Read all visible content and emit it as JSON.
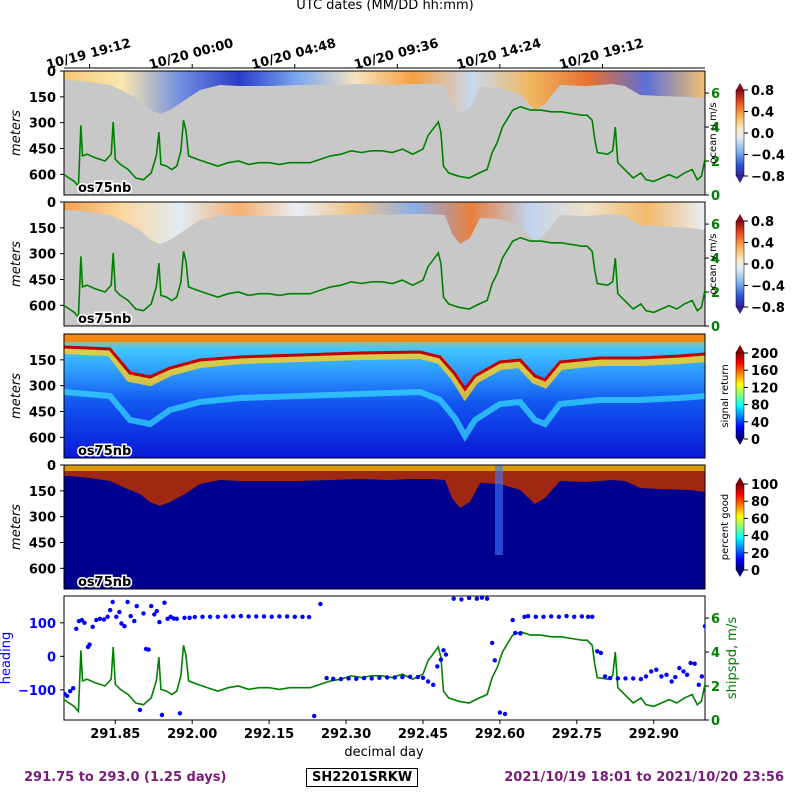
{
  "figure": {
    "top_axis_label": "UTC dates (MM/DD hh:mm)",
    "instrument_label": "os75nb",
    "footer_left": "291.75 to 293.0 (1.25 days)",
    "footer_center": "SH2201SRKW",
    "footer_right": "2021/10/19 18:01 to 2021/10/20 23:56",
    "colors": {
      "footer_text": "#7a1a7a",
      "heading_axis": "#0000ff",
      "shipspd_axis": "#008000",
      "bad_data_gray": "#c8c8c8"
    }
  },
  "chart_data": [
    {
      "type": "heatmap",
      "id": "ocean_u",
      "ylabel": "meters",
      "yticks": [
        0,
        150,
        300,
        450,
        600
      ],
      "ylim": [
        720,
        0
      ],
      "colorbar_label": "ocean u m/s",
      "colorbar_ticks": [
        "0.8",
        "0.4",
        "0.0",
        "−0.4",
        "−0.8"
      ],
      "colormap": "RdYlBu_r",
      "right_axis_ticks": [
        "6",
        "4",
        "2",
        "0"
      ],
      "right_axis_color": "#008000"
    },
    {
      "type": "heatmap",
      "id": "ocean_v",
      "ylabel": "meters",
      "yticks": [
        0,
        150,
        300,
        450,
        600
      ],
      "ylim": [
        720,
        0
      ],
      "colorbar_label": "ocean v m/s",
      "colorbar_ticks": [
        "0.8",
        "0.4",
        "0.0",
        "−0.4",
        "−0.8"
      ],
      "colormap": "RdYlBu_r",
      "right_axis_ticks": [
        "6",
        "4",
        "2",
        "0"
      ],
      "right_axis_color": "#008000"
    },
    {
      "type": "heatmap",
      "id": "signal_return",
      "ylabel": "meters",
      "yticks": [
        150,
        300,
        450,
        600
      ],
      "ylim": [
        720,
        0
      ],
      "colorbar_label": "signal return",
      "colorbar_ticks": [
        "200",
        "160",
        "120",
        "80",
        "40",
        "0"
      ],
      "colormap": "jet"
    },
    {
      "type": "heatmap",
      "id": "percent_good",
      "ylabel": "meters",
      "yticks": [
        0,
        150,
        300,
        450,
        600
      ],
      "ylim": [
        720,
        0
      ],
      "colorbar_label": "percent good",
      "colorbar_ticks": [
        "100",
        "80",
        "60",
        "40",
        "20",
        "0"
      ],
      "colormap": "jet"
    },
    {
      "type": "scatter",
      "id": "heading_speed",
      "xlabel": "decimal day",
      "xlim": [
        291.75,
        293.0
      ],
      "xticks": [
        "291.85",
        "292.00",
        "292.15",
        "292.30",
        "292.45",
        "292.60",
        "292.75",
        "292.90"
      ],
      "top_xticks": [
        "10/19 19:12",
        "10/20 00:00",
        "10/20 04:48",
        "10/20 09:36",
        "10/20 14:24",
        "10/20 19:12"
      ],
      "ylabel": "heading",
      "yticks": [
        "100",
        "0",
        "−100"
      ],
      "ylim": [
        -190,
        180
      ],
      "y2label": "shipspd, m/s",
      "y2ticks": [
        "6",
        "4",
        "2",
        "0"
      ],
      "y2lim": [
        0,
        7.3
      ],
      "heading": [
        [
          291.751,
          -112
        ],
        [
          291.756,
          -118
        ],
        [
          291.762,
          -104
        ],
        [
          291.768,
          -95
        ],
        [
          291.774,
          82
        ],
        [
          291.779,
          105
        ],
        [
          291.785,
          108
        ],
        [
          291.79,
          100
        ],
        [
          291.797,
          28
        ],
        [
          291.8,
          35
        ],
        [
          291.806,
          88
        ],
        [
          291.813,
          108
        ],
        [
          291.82,
          112
        ],
        [
          291.828,
          110
        ],
        [
          291.835,
          118
        ],
        [
          291.84,
          138
        ],
        [
          291.845,
          162
        ],
        [
          291.852,
          118
        ],
        [
          291.858,
          132
        ],
        [
          291.862,
          98
        ],
        [
          291.868,
          90
        ],
        [
          291.874,
          162
        ],
        [
          291.88,
          120
        ],
        [
          291.887,
          105
        ],
        [
          291.892,
          150
        ],
        [
          291.898,
          -160
        ],
        [
          291.905,
          128
        ],
        [
          291.91,
          22
        ],
        [
          291.915,
          20
        ],
        [
          291.92,
          150
        ],
        [
          291.926,
          125
        ],
        [
          291.931,
          135
        ],
        [
          291.936,
          102
        ],
        [
          291.941,
          -175
        ],
        [
          291.946,
          160
        ],
        [
          291.952,
          112
        ],
        [
          291.958,
          118
        ],
        [
          291.964,
          113
        ],
        [
          291.97,
          112
        ],
        [
          291.976,
          -170
        ],
        [
          291.985,
          115
        ],
        [
          291.995,
          115
        ],
        [
          292.005,
          117
        ],
        [
          292.02,
          118
        ],
        [
          292.035,
          118
        ],
        [
          292.05,
          118
        ],
        [
          292.065,
          119
        ],
        [
          292.08,
          119
        ],
        [
          292.095,
          120
        ],
        [
          292.11,
          119
        ],
        [
          292.125,
          119
        ],
        [
          292.14,
          119
        ],
        [
          292.155,
          118
        ],
        [
          292.17,
          119
        ],
        [
          292.185,
          119
        ],
        [
          292.2,
          118
        ],
        [
          292.215,
          118
        ],
        [
          292.228,
          117
        ],
        [
          292.238,
          -178
        ],
        [
          292.25,
          156
        ],
        [
          292.262,
          -65
        ],
        [
          292.275,
          -67
        ],
        [
          292.29,
          -68
        ],
        [
          292.305,
          -66
        ],
        [
          292.32,
          -67
        ],
        [
          292.335,
          -65
        ],
        [
          292.35,
          -66
        ],
        [
          292.365,
          -64
        ],
        [
          292.38,
          -63
        ],
        [
          292.395,
          -63
        ],
        [
          292.41,
          -62
        ],
        [
          292.425,
          -61
        ],
        [
          292.44,
          -62
        ],
        [
          292.45,
          -64
        ],
        [
          292.46,
          -75
        ],
        [
          292.47,
          -85
        ],
        [
          292.478,
          -30
        ],
        [
          292.485,
          -10
        ],
        [
          292.49,
          18
        ],
        [
          292.495,
          5
        ],
        [
          292.51,
          172
        ],
        [
          292.525,
          170
        ],
        [
          292.54,
          174
        ],
        [
          292.555,
          172
        ],
        [
          292.565,
          175
        ],
        [
          292.575,
          172
        ],
        [
          292.585,
          40
        ],
        [
          292.59,
          -12
        ],
        [
          292.6,
          -168
        ],
        [
          292.61,
          -172
        ],
        [
          292.625,
          108
        ],
        [
          292.63,
          70
        ],
        [
          292.64,
          68
        ],
        [
          292.648,
          118
        ],
        [
          292.655,
          120
        ],
        [
          292.67,
          118
        ],
        [
          292.685,
          118
        ],
        [
          292.7,
          119
        ],
        [
          292.715,
          118
        ],
        [
          292.73,
          120
        ],
        [
          292.745,
          118
        ],
        [
          292.76,
          119
        ],
        [
          292.772,
          118
        ],
        [
          292.78,
          118
        ],
        [
          292.79,
          15
        ],
        [
          292.797,
          10
        ],
        [
          292.805,
          -60
        ],
        [
          292.815,
          -65
        ],
        [
          292.83,
          -66
        ],
        [
          292.845,
          -66
        ],
        [
          292.86,
          -66
        ],
        [
          292.875,
          -68
        ],
        [
          292.885,
          -60
        ],
        [
          292.895,
          -45
        ],
        [
          292.905,
          -40
        ],
        [
          292.915,
          -60
        ],
        [
          292.925,
          -55
        ],
        [
          292.935,
          -75
        ],
        [
          292.942,
          -62
        ],
        [
          292.95,
          -35
        ],
        [
          292.958,
          -45
        ],
        [
          292.965,
          -55
        ],
        [
          292.972,
          -20
        ],
        [
          292.98,
          -22
        ],
        [
          292.988,
          -85
        ],
        [
          292.994,
          -60
        ],
        [
          293.0,
          90
        ]
      ],
      "shipspd": [
        [
          291.75,
          1.2
        ],
        [
          291.76,
          1.0
        ],
        [
          291.77,
          0.8
        ],
        [
          291.778,
          0.5
        ],
        [
          291.783,
          4.1
        ],
        [
          291.786,
          2.3
        ],
        [
          291.795,
          2.4
        ],
        [
          291.81,
          2.2
        ],
        [
          291.83,
          2.0
        ],
        [
          291.842,
          2.4
        ],
        [
          291.846,
          4.3
        ],
        [
          291.85,
          2.1
        ],
        [
          291.86,
          1.8
        ],
        [
          291.875,
          1.5
        ],
        [
          291.89,
          1.0
        ],
        [
          291.905,
          0.9
        ],
        [
          291.92,
          1.3
        ],
        [
          291.93,
          2.3
        ],
        [
          291.935,
          3.7
        ],
        [
          291.939,
          1.8
        ],
        [
          291.95,
          1.7
        ],
        [
          291.96,
          1.5
        ],
        [
          291.97,
          1.7
        ],
        [
          291.978,
          2.6
        ],
        [
          291.983,
          4.4
        ],
        [
          291.988,
          3.8
        ],
        [
          291.993,
          2.3
        ],
        [
          292.01,
          2.1
        ],
        [
          292.03,
          1.9
        ],
        [
          292.05,
          1.7
        ],
        [
          292.07,
          1.9
        ],
        [
          292.09,
          2.0
        ],
        [
          292.11,
          1.8
        ],
        [
          292.13,
          1.9
        ],
        [
          292.15,
          1.9
        ],
        [
          292.17,
          1.8
        ],
        [
          292.19,
          1.9
        ],
        [
          292.21,
          1.9
        ],
        [
          292.23,
          1.9
        ],
        [
          292.25,
          2.1
        ],
        [
          292.27,
          2.3
        ],
        [
          292.29,
          2.4
        ],
        [
          292.31,
          2.6
        ],
        [
          292.33,
          2.5
        ],
        [
          292.35,
          2.6
        ],
        [
          292.37,
          2.6
        ],
        [
          292.39,
          2.5
        ],
        [
          292.41,
          2.7
        ],
        [
          292.43,
          2.4
        ],
        [
          292.45,
          2.7
        ],
        [
          292.46,
          3.5
        ],
        [
          292.47,
          3.9
        ],
        [
          292.48,
          4.3
        ],
        [
          292.485,
          3.7
        ],
        [
          292.49,
          1.7
        ],
        [
          292.5,
          1.3
        ],
        [
          292.52,
          1.1
        ],
        [
          292.54,
          1.0
        ],
        [
          292.56,
          1.3
        ],
        [
          292.575,
          1.5
        ],
        [
          292.585,
          2.5
        ],
        [
          292.595,
          3.1
        ],
        [
          292.605,
          4.0
        ],
        [
          292.615,
          4.5
        ],
        [
          292.625,
          5.0
        ],
        [
          292.64,
          5.2
        ],
        [
          292.66,
          5.0
        ],
        [
          292.68,
          5.0
        ],
        [
          292.7,
          4.9
        ],
        [
          292.72,
          4.9
        ],
        [
          292.74,
          4.8
        ],
        [
          292.76,
          4.7
        ],
        [
          292.77,
          4.7
        ],
        [
          292.78,
          4.4
        ],
        [
          292.785,
          3.3
        ],
        [
          292.79,
          2.5
        ],
        [
          292.81,
          2.4
        ],
        [
          292.82,
          2.6
        ],
        [
          292.825,
          4.0
        ],
        [
          292.83,
          1.9
        ],
        [
          292.84,
          1.6
        ],
        [
          292.85,
          1.3
        ],
        [
          292.86,
          1.0
        ],
        [
          292.875,
          1.3
        ],
        [
          292.885,
          0.9
        ],
        [
          292.9,
          0.8
        ],
        [
          292.915,
          1.0
        ],
        [
          292.93,
          1.2
        ],
        [
          292.945,
          1.0
        ],
        [
          292.96,
          1.3
        ],
        [
          292.975,
          1.5
        ],
        [
          292.985,
          0.9
        ],
        [
          292.993,
          1.1
        ],
        [
          293.0,
          2.1
        ]
      ]
    }
  ]
}
